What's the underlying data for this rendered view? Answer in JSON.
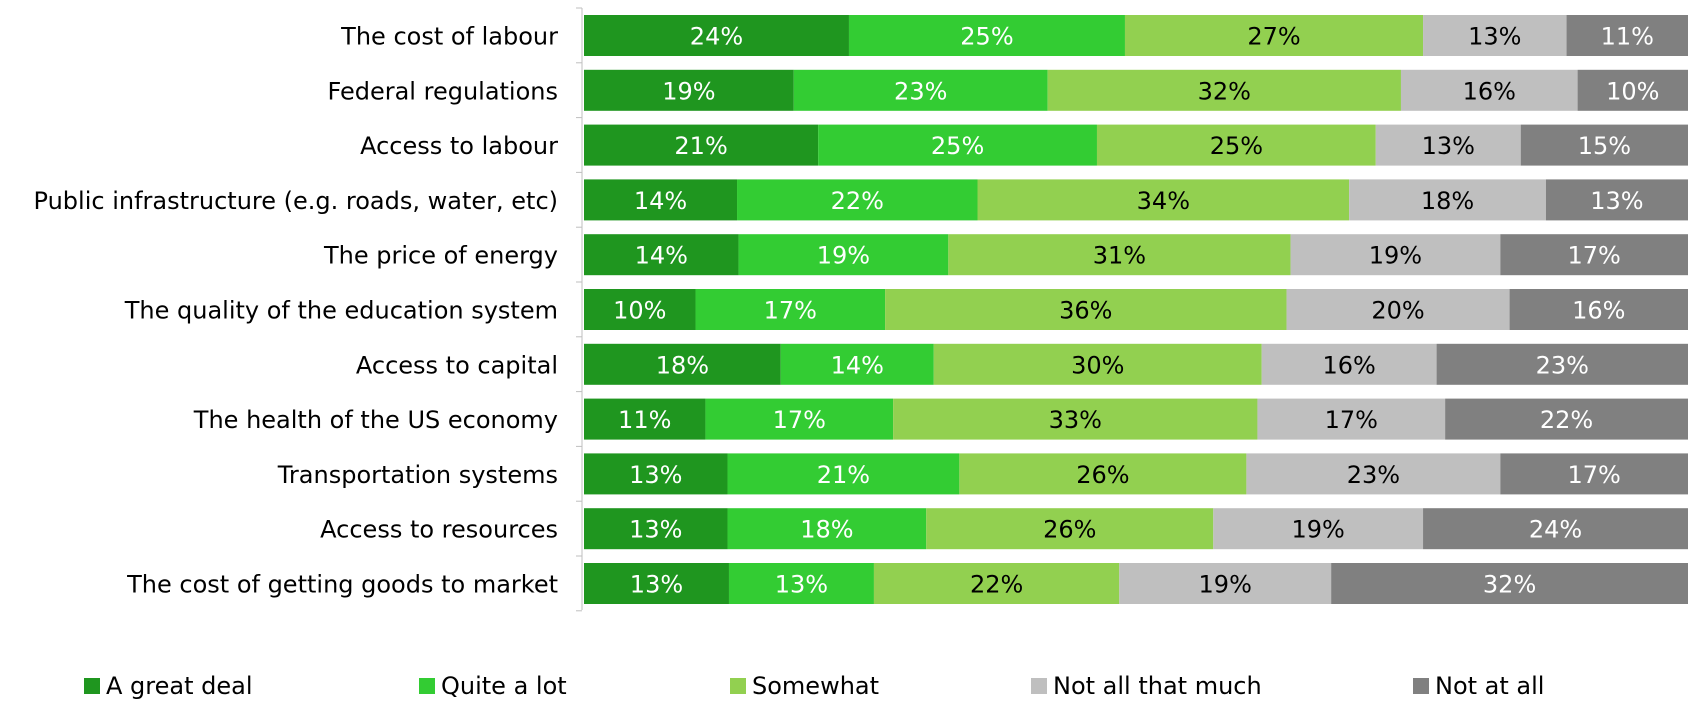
{
  "chart_data": {
    "type": "bar",
    "orientation": "horizontal",
    "stacked": "percent",
    "title": "",
    "xlabel": "",
    "ylabel": "",
    "xlim": [
      0,
      100
    ],
    "grid": false,
    "legend_position": "bottom",
    "categories": [
      "The cost of labour",
      "Federal regulations",
      "Access to labour",
      "Public infrastructure (e.g. roads, water, etc)",
      "The price of energy",
      "The quality of the education system",
      "Access to capital",
      "The health of the US economy",
      "Transportation systems",
      "Access to resources",
      "The cost of getting goods to market"
    ],
    "series": [
      {
        "name": "A great deal",
        "color": "#1f961f",
        "label_color": "#ffffff",
        "values": [
          24,
          19,
          21,
          14,
          14,
          10,
          18,
          11,
          13,
          13,
          13
        ]
      },
      {
        "name": "Quite a lot",
        "color": "#33cc33",
        "label_color": "#ffffff",
        "values": [
          25,
          23,
          25,
          22,
          19,
          17,
          14,
          17,
          21,
          18,
          13
        ]
      },
      {
        "name": "Somewhat",
        "color": "#92d050",
        "label_color": "#000000",
        "values": [
          27,
          32,
          25,
          34,
          31,
          36,
          30,
          33,
          26,
          26,
          22
        ]
      },
      {
        "name": "Not all that much",
        "color": "#bfbfbf",
        "label_color": "#000000",
        "values": [
          13,
          16,
          13,
          18,
          19,
          20,
          16,
          17,
          23,
          19,
          19
        ]
      },
      {
        "name": "Not at all",
        "color": "#808080",
        "label_color": "#ffffff",
        "values": [
          11,
          10,
          15,
          13,
          17,
          16,
          23,
          22,
          17,
          24,
          32
        ]
      }
    ]
  }
}
